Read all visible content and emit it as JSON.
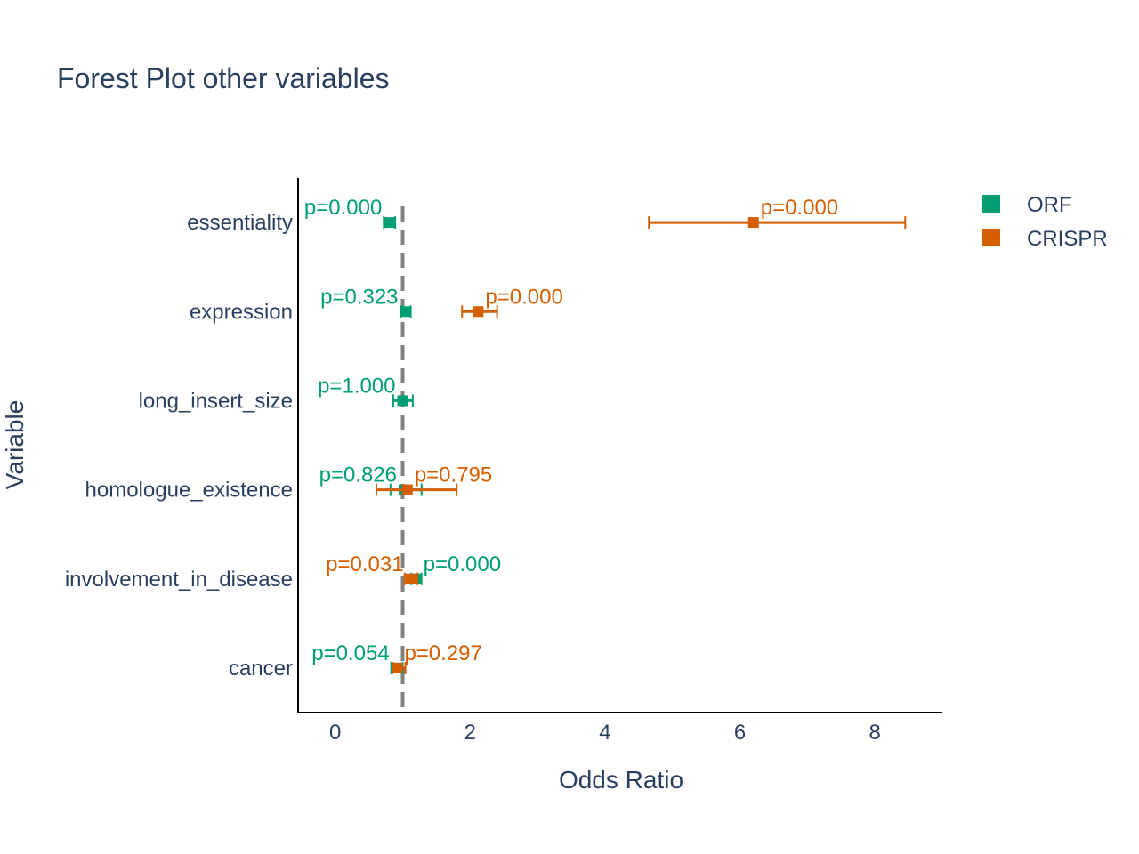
{
  "chart_data": {
    "type": "scatter",
    "title": "Forest Plot other variables",
    "xlabel": "Odds Ratio",
    "ylabel": "Variable",
    "xlim": [
      -0.55,
      9.0
    ],
    "xticks": [
      0,
      2,
      4,
      6,
      8
    ],
    "xtick_labels": [
      "0",
      "2",
      "4",
      "6",
      "8"
    ],
    "reference_line": 1,
    "reference_color": "#808080",
    "grid": false,
    "legend_position": "top-right",
    "categories": [
      "essentiality",
      "expression",
      "long_insert_size",
      "homologue_existence",
      "involvement_in_disease",
      "cancer"
    ],
    "series": [
      {
        "name": "ORF",
        "color": "#009e73",
        "points": [
          {
            "category": "essentiality",
            "or": 0.8,
            "lo": 0.72,
            "hi": 0.89,
            "p": "p=0.000",
            "label_side": "left"
          },
          {
            "category": "expression",
            "or": 1.04,
            "lo": 0.97,
            "hi": 1.12,
            "p": "p=0.323",
            "label_side": "left"
          },
          {
            "category": "long_insert_size",
            "or": 1.0,
            "lo": 0.86,
            "hi": 1.15,
            "p": "p=1.000",
            "label_side": "left"
          },
          {
            "category": "homologue_existence",
            "or": 1.02,
            "lo": 0.82,
            "hi": 1.28,
            "p": "p=0.826",
            "label_side": "left"
          },
          {
            "category": "involvement_in_disease",
            "or": 1.2,
            "lo": 1.13,
            "hi": 1.28,
            "p": "p=0.000",
            "label_side": "right"
          },
          {
            "category": "cancer",
            "or": 0.91,
            "lo": 0.83,
            "hi": 1.0,
            "p": "p=0.054",
            "label_side": "left"
          }
        ]
      },
      {
        "name": "CRISPR",
        "color": "#d55e00",
        "points": [
          {
            "category": "essentiality",
            "or": 6.2,
            "lo": 4.65,
            "hi": 8.45,
            "p": "p=0.000",
            "label_side": "right"
          },
          {
            "category": "expression",
            "or": 2.12,
            "lo": 1.88,
            "hi": 2.4,
            "p": "p=0.000",
            "label_side": "right"
          },
          {
            "category": "homologue_existence",
            "or": 1.07,
            "lo": 0.61,
            "hi": 1.8,
            "p": "p=0.795",
            "label_side": "right"
          },
          {
            "category": "involvement_in_disease",
            "or": 1.12,
            "lo": 1.03,
            "hi": 1.22,
            "p": "p=0.031",
            "label_side": "left"
          },
          {
            "category": "cancer",
            "or": 0.92,
            "lo": 0.85,
            "hi": 1.04,
            "p": "p=0.297",
            "label_side": "right"
          }
        ]
      }
    ]
  }
}
